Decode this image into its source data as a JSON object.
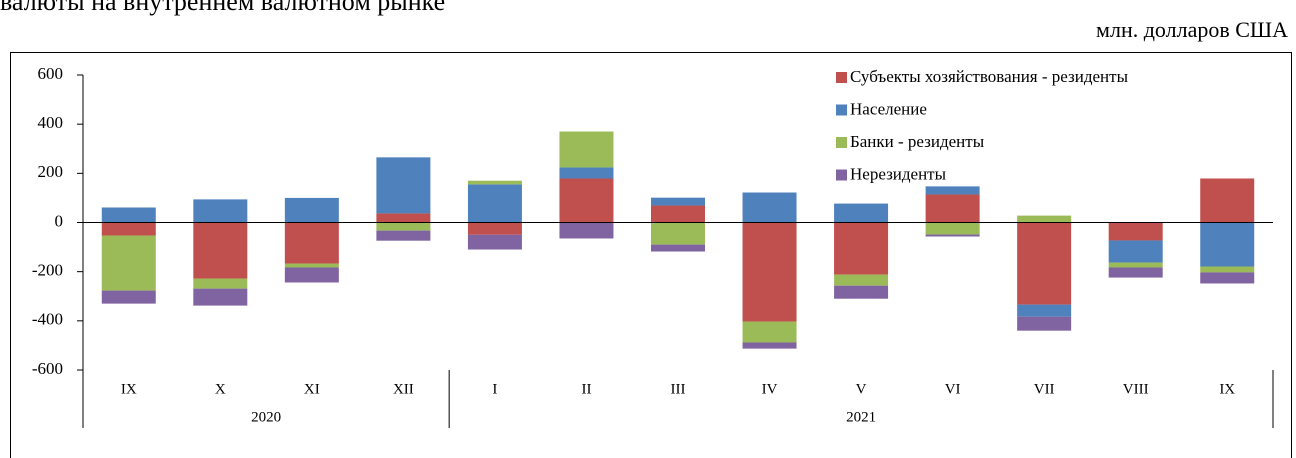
{
  "chart_data": {
    "type": "bar",
    "stacked": true,
    "title": "валюты на внутреннем валютном рынке",
    "unit_label": "млн. долларов США",
    "categories": [
      "IX",
      "X",
      "XI",
      "XII",
      "I",
      "II",
      "III",
      "IV",
      "V",
      "VI",
      "VII",
      "VIII",
      "IX"
    ],
    "category_groups": [
      {
        "name": "2020",
        "count": 4
      },
      {
        "name": "2021",
        "count": 9
      }
    ],
    "series": [
      {
        "name": "Субъекты хозяйствования - резиденты",
        "color": "#c0504d",
        "values": [
          -53,
          -228,
          -167,
          37,
          -50,
          179,
          69,
          -403,
          -212,
          114,
          -334,
          -73,
          179
        ]
      },
      {
        "name": "Население",
        "color": "#4f81bd",
        "values": [
          61,
          94,
          100,
          228,
          155,
          45,
          32,
          122,
          77,
          33,
          -49,
          -90,
          -179
        ]
      },
      {
        "name": "Банки - резиденты",
        "color": "#9bbb59",
        "values": [
          -224,
          -41,
          -16,
          -33,
          15,
          146,
          -90,
          -85,
          -45,
          -49,
          28,
          -20,
          -24
        ]
      },
      {
        "name": "Нерезиденты",
        "color": "#8064a2",
        "values": [
          -53,
          -69,
          -61,
          -41,
          -60,
          -65,
          -28,
          -25,
          -53,
          -8,
          -57,
          -41,
          -45
        ]
      }
    ],
    "ylim": [
      -600,
      600
    ],
    "yticks": [
      -600,
      -400,
      -200,
      0,
      200,
      400,
      600
    ],
    "grid": false,
    "legend": "upper right"
  }
}
